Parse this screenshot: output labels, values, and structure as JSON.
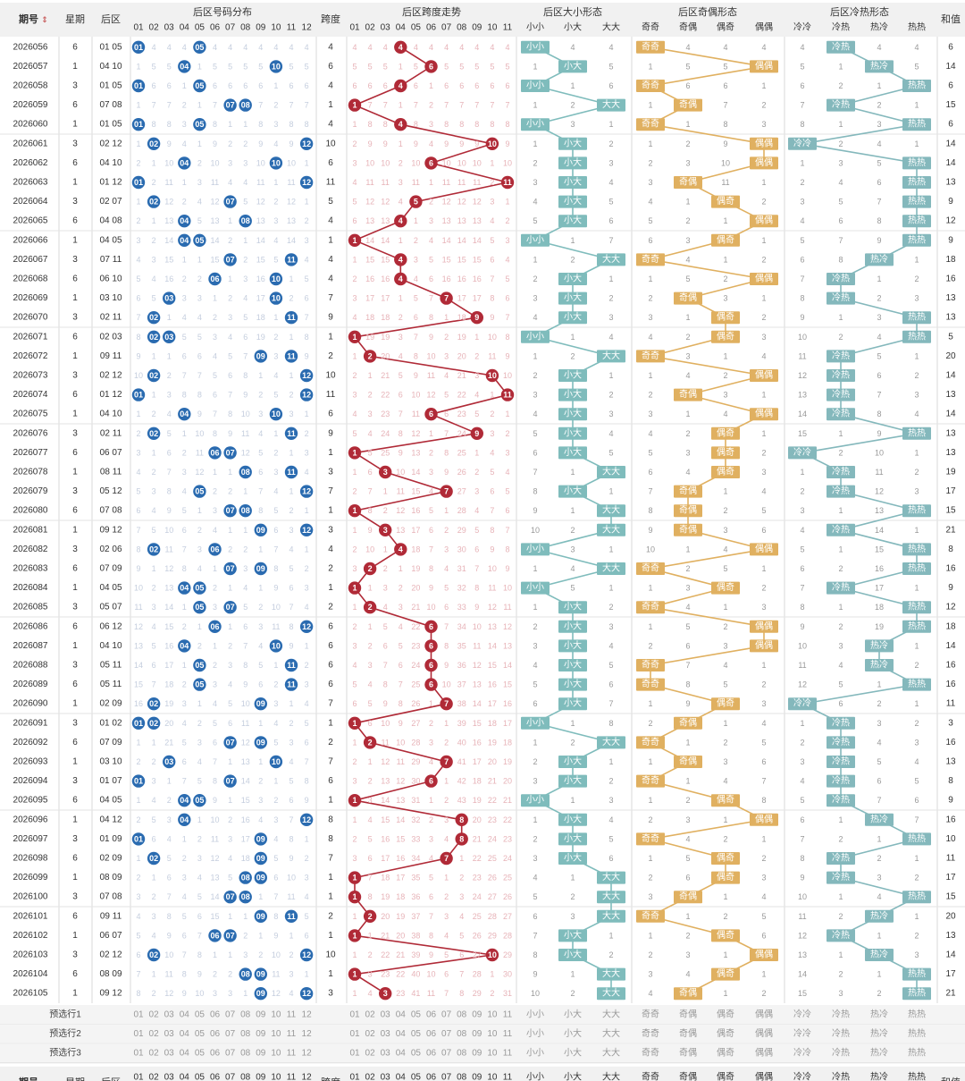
{
  "header": {
    "period": "期号",
    "sort_icon": "sort-icon",
    "weekday": "星期",
    "back_zone": "后区",
    "dist_group": "后区号码分布",
    "span": "跨度",
    "span_group": "后区跨度走势",
    "size_group": "后区大小形态",
    "oe_group": "后区奇偶形态",
    "hc_group": "后区冷热形态",
    "sum": "和值"
  },
  "number_headers": [
    "01",
    "02",
    "03",
    "04",
    "05",
    "06",
    "07",
    "08",
    "09",
    "10",
    "11",
    "12"
  ],
  "span_headers": [
    "01",
    "02",
    "03",
    "04",
    "05",
    "06",
    "07",
    "08",
    "09",
    "10",
    "11"
  ],
  "size_headers": [
    "小小",
    "小大",
    "大大"
  ],
  "oe_headers": [
    "奇奇",
    "奇偶",
    "偶奇",
    "偶偶"
  ],
  "hc_headers": [
    "冷冷",
    "冷热",
    "热冷",
    "热热"
  ],
  "preselect_labels": [
    "预选行1",
    "预选行2",
    "预选行3"
  ],
  "colors": {
    "ball_blue": "#2a6bb0",
    "ball_red": "#b02a37",
    "size_teal": "#7fbcbc",
    "oe_gold": "#e0b060",
    "hc_teal": "#84b8bc",
    "header_bg": "#f1f1f1",
    "border": "#d9d9d9"
  },
  "chart_data": {
    "type": "table",
    "rows": [
      {
        "period": "2026056",
        "weekday": 6,
        "back": "01 05",
        "span": 4,
        "size": "小小",
        "oe": "奇奇",
        "hc": "冷热",
        "sum": 6
      },
      {
        "period": "2026057",
        "weekday": 1,
        "back": "04 10",
        "span": 6,
        "size": "小大",
        "oe": "偶偶",
        "hc": "热冷",
        "sum": 14
      },
      {
        "period": "2026058",
        "weekday": 3,
        "back": "01 05",
        "span": 4,
        "size": "小小",
        "oe": "奇奇",
        "hc": "热热",
        "sum": 6
      },
      {
        "period": "2026059",
        "weekday": 6,
        "back": "07 08",
        "span": 1,
        "size": "大大",
        "oe": "奇偶",
        "hc": "冷热",
        "sum": 15
      },
      {
        "period": "2026060",
        "weekday": 1,
        "back": "01 05",
        "span": 4,
        "size": "小小",
        "oe": "奇奇",
        "hc": "热热",
        "sum": 6
      },
      {
        "period": "2026061",
        "weekday": 3,
        "back": "02 12",
        "span": 10,
        "size": "小大",
        "oe": "偶偶",
        "hc": "冷冷",
        "sum": 14
      },
      {
        "period": "2026062",
        "weekday": 6,
        "back": "04 10",
        "span": 6,
        "size": "小大",
        "oe": "偶偶",
        "hc": "热热",
        "sum": 14
      },
      {
        "period": "2026063",
        "weekday": 1,
        "back": "01 12",
        "span": 11,
        "size": "小大",
        "oe": "奇偶",
        "hc": "热热",
        "sum": 13
      },
      {
        "period": "2026064",
        "weekday": 3,
        "back": "02 07",
        "span": 5,
        "size": "小大",
        "oe": "偶奇",
        "hc": "热热",
        "sum": 9
      },
      {
        "period": "2026065",
        "weekday": 6,
        "back": "04 08",
        "span": 4,
        "size": "小大",
        "oe": "偶偶",
        "hc": "热热",
        "sum": 12
      },
      {
        "period": "2026066",
        "weekday": 1,
        "back": "04 05",
        "span": 1,
        "size": "小小",
        "oe": "偶奇",
        "hc": "热热",
        "sum": 9
      },
      {
        "period": "2026067",
        "weekday": 3,
        "back": "07 11",
        "span": 4,
        "size": "大大",
        "oe": "奇奇",
        "hc": "热冷",
        "sum": 18
      },
      {
        "period": "2026068",
        "weekday": 6,
        "back": "06 10",
        "span": 4,
        "size": "小大",
        "oe": "偶偶",
        "hc": "冷热",
        "sum": 16
      },
      {
        "period": "2026069",
        "weekday": 1,
        "back": "03 10",
        "span": 7,
        "size": "小大",
        "oe": "奇偶",
        "hc": "冷热",
        "sum": 13
      },
      {
        "period": "2026070",
        "weekday": 3,
        "back": "02 11",
        "span": 9,
        "size": "小大",
        "oe": "偶奇",
        "hc": "热热",
        "sum": 13
      },
      {
        "period": "2026071",
        "weekday": 6,
        "back": "02 03",
        "span": 1,
        "size": "小小",
        "oe": "偶奇",
        "hc": "热热",
        "sum": 5
      },
      {
        "period": "2026072",
        "weekday": 1,
        "back": "09 11",
        "span": 2,
        "size": "大大",
        "oe": "奇奇",
        "hc": "冷热",
        "sum": 20
      },
      {
        "period": "2026073",
        "weekday": 3,
        "back": "02 12",
        "span": 10,
        "size": "小大",
        "oe": "偶偶",
        "hc": "冷热",
        "sum": 14
      },
      {
        "period": "2026074",
        "weekday": 6,
        "back": "01 12",
        "span": 11,
        "size": "小大",
        "oe": "奇偶",
        "hc": "冷热",
        "sum": 13
      },
      {
        "period": "2026075",
        "weekday": 1,
        "back": "04 10",
        "span": 6,
        "size": "小大",
        "oe": "偶偶",
        "hc": "冷热",
        "sum": 14
      },
      {
        "period": "2026076",
        "weekday": 3,
        "back": "02 11",
        "span": 9,
        "size": "小大",
        "oe": "偶奇",
        "hc": "热热",
        "sum": 13
      },
      {
        "period": "2026077",
        "weekday": 6,
        "back": "06 07",
        "span": 1,
        "size": "小大",
        "oe": "偶奇",
        "hc": "冷冷",
        "sum": 13
      },
      {
        "period": "2026078",
        "weekday": 1,
        "back": "08 11",
        "span": 3,
        "size": "大大",
        "oe": "偶奇",
        "hc": "冷热",
        "sum": 19
      },
      {
        "period": "2026079",
        "weekday": 3,
        "back": "05 12",
        "span": 7,
        "size": "小大",
        "oe": "奇偶",
        "hc": "冷热",
        "sum": 17
      },
      {
        "period": "2026080",
        "weekday": 6,
        "back": "07 08",
        "span": 1,
        "size": "大大",
        "oe": "奇偶",
        "hc": "热热",
        "sum": 15
      },
      {
        "period": "2026081",
        "weekday": 1,
        "back": "09 12",
        "span": 3,
        "size": "大大",
        "oe": "奇偶",
        "hc": "冷热",
        "sum": 21
      },
      {
        "period": "2026082",
        "weekday": 3,
        "back": "02 06",
        "span": 4,
        "size": "小小",
        "oe": "偶偶",
        "hc": "热热",
        "sum": 8
      },
      {
        "period": "2026083",
        "weekday": 6,
        "back": "07 09",
        "span": 2,
        "size": "大大",
        "oe": "奇奇",
        "hc": "热热",
        "sum": 16
      },
      {
        "period": "2026084",
        "weekday": 1,
        "back": "04 05",
        "span": 1,
        "size": "小小",
        "oe": "偶奇",
        "hc": "冷热",
        "sum": 9
      },
      {
        "period": "2026085",
        "weekday": 3,
        "back": "05 07",
        "span": 2,
        "size": "小大",
        "oe": "奇奇",
        "hc": "热热",
        "sum": 12
      },
      {
        "period": "2026086",
        "weekday": 6,
        "back": "06 12",
        "span": 6,
        "size": "小大",
        "oe": "偶偶",
        "hc": "热热",
        "sum": 18
      },
      {
        "period": "2026087",
        "weekday": 1,
        "back": "04 10",
        "span": 6,
        "size": "小大",
        "oe": "偶偶",
        "hc": "热冷",
        "sum": 14
      },
      {
        "period": "2026088",
        "weekday": 3,
        "back": "05 11",
        "span": 6,
        "size": "小大",
        "oe": "奇奇",
        "hc": "热冷",
        "sum": 16
      },
      {
        "period": "2026089",
        "weekday": 6,
        "back": "05 11",
        "span": 6,
        "size": "小大",
        "oe": "奇奇",
        "hc": "热热",
        "sum": 16
      },
      {
        "period": "2026090",
        "weekday": 1,
        "back": "02 09",
        "span": 7,
        "size": "小大",
        "oe": "偶奇",
        "hc": "冷冷",
        "sum": 11
      },
      {
        "period": "2026091",
        "weekday": 3,
        "back": "01 02",
        "span": 1,
        "size": "小小",
        "oe": "奇偶",
        "hc": "冷热",
        "sum": 3
      },
      {
        "period": "2026092",
        "weekday": 6,
        "back": "07 09",
        "span": 2,
        "size": "大大",
        "oe": "奇奇",
        "hc": "冷热",
        "sum": 16
      },
      {
        "period": "2026093",
        "weekday": 1,
        "back": "03 10",
        "span": 7,
        "size": "小大",
        "oe": "奇偶",
        "hc": "冷热",
        "sum": 13
      },
      {
        "period": "2026094",
        "weekday": 3,
        "back": "01 07",
        "span": 6,
        "size": "小大",
        "oe": "奇奇",
        "hc": "冷热",
        "sum": 8
      },
      {
        "period": "2026095",
        "weekday": 6,
        "back": "04 05",
        "span": 1,
        "size": "小小",
        "oe": "偶奇",
        "hc": "冷热",
        "sum": 9
      },
      {
        "period": "2026096",
        "weekday": 1,
        "back": "04 12",
        "span": 8,
        "size": "小大",
        "oe": "偶偶",
        "hc": "热冷",
        "sum": 16
      },
      {
        "period": "2026097",
        "weekday": 3,
        "back": "01 09",
        "span": 8,
        "size": "小大",
        "oe": "奇奇",
        "hc": "热热",
        "sum": 10
      },
      {
        "period": "2026098",
        "weekday": 6,
        "back": "02 09",
        "span": 7,
        "size": "小大",
        "oe": "偶奇",
        "hc": "冷热",
        "sum": 11
      },
      {
        "period": "2026099",
        "weekday": 1,
        "back": "08 09",
        "span": 1,
        "size": "大大",
        "oe": "偶奇",
        "hc": "冷热",
        "sum": 17
      },
      {
        "period": "2026100",
        "weekday": 3,
        "back": "07 08",
        "span": 1,
        "size": "大大",
        "oe": "奇偶",
        "hc": "热热",
        "sum": 15
      },
      {
        "period": "2026101",
        "weekday": 6,
        "back": "09 11",
        "span": 2,
        "size": "大大",
        "oe": "奇奇",
        "hc": "热冷",
        "sum": 20
      },
      {
        "period": "2026102",
        "weekday": 1,
        "back": "06 07",
        "span": 1,
        "size": "小大",
        "oe": "偶奇",
        "hc": "冷热",
        "sum": 13
      },
      {
        "period": "2026103",
        "weekday": 3,
        "back": "02 12",
        "span": 10,
        "size": "小大",
        "oe": "偶偶",
        "hc": "热冷",
        "sum": 14
      },
      {
        "period": "2026104",
        "weekday": 6,
        "back": "08 09",
        "span": 1,
        "size": "大大",
        "oe": "偶奇",
        "hc": "热热",
        "sum": 17
      },
      {
        "period": "2026105",
        "weekday": 1,
        "back": "09 12",
        "span": 3,
        "size": "大大",
        "oe": "奇偶",
        "hc": "热热",
        "sum": 21
      }
    ]
  }
}
